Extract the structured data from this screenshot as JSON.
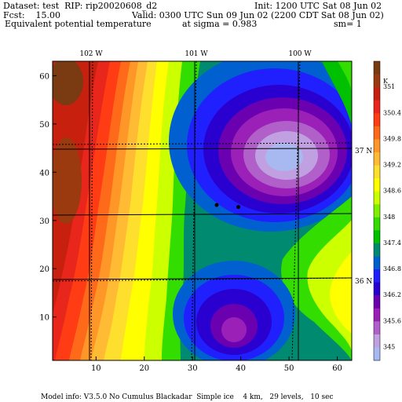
{
  "header": {
    "dataset": "Dataset: test  RIP: rip20020608_d2",
    "init": "Init: 1200 UTC Sat 08 Jun 02",
    "fcst": "Fcst:    15.00",
    "valid": "Valid: 0300 UTC Sun 09 Jun 02 (2200 CDT Sat 08 Jun 02)",
    "field": "Equivalent potential temperature",
    "sigma": "at sigma = 0.983",
    "sm": "sm= 1"
  },
  "map": {
    "x_ticks": [
      "10",
      "20",
      "30",
      "40",
      "50",
      "60"
    ],
    "y_ticks": [
      "10",
      "20",
      "30",
      "40",
      "50",
      "60"
    ],
    "longitude_labels": [
      "102 W",
      "101 W",
      "100 W"
    ],
    "latitude_labels": [
      "37 N",
      "36 N"
    ],
    "grid_range": {
      "x": [
        1,
        63
      ],
      "y": [
        1,
        63
      ]
    },
    "stations": [
      {
        "x": 35,
        "y": 33.2
      },
      {
        "x": 39.5,
        "y": 32.8
      }
    ]
  },
  "colorbar": {
    "unit": "K",
    "labels": [
      "351",
      "350.4",
      "349.8",
      "349.2",
      "348.6",
      "348",
      "347.4",
      "346.8",
      "346.2",
      "345.6",
      "345"
    ],
    "colors": [
      "#7a3a12",
      "#9b3a0e",
      "#c8200f",
      "#e8261b",
      "#ff3c14",
      "#ff6a1a",
      "#ff9628",
      "#ffbb33",
      "#ffdf2e",
      "#ffff00",
      "#ccff00",
      "#7fef00",
      "#33dd00",
      "#00c000",
      "#008a70",
      "#0060d0",
      "#2020ff",
      "#2a00d0",
      "#6a00b0",
      "#9a20b8",
      "#b060c8",
      "#c0a0e0",
      "#a8b8f0"
    ]
  },
  "footer": "Model info: V3.5.0 No Cumulus Blackadar  Simple ice    4 km,   29 levels,   10 sec"
}
